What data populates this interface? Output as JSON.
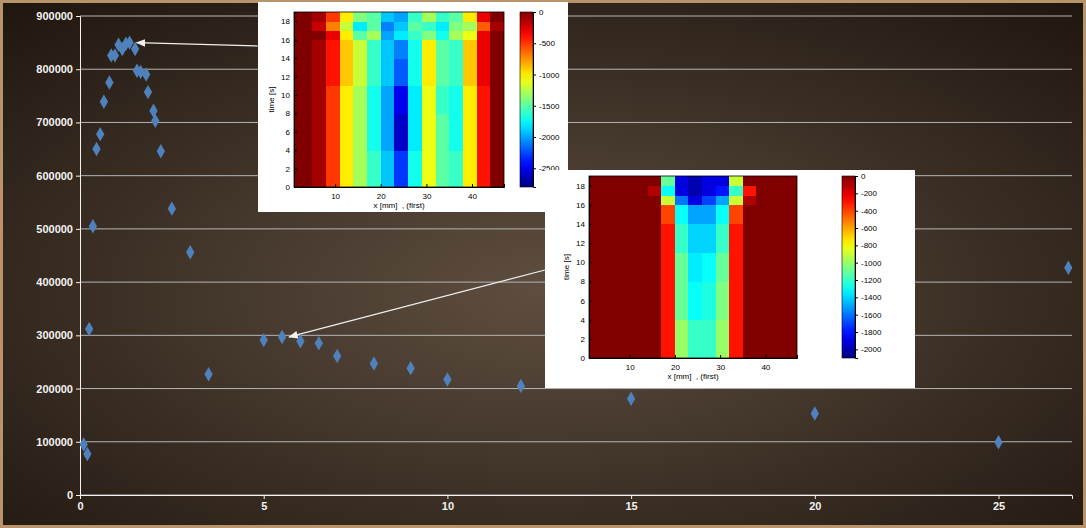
{
  "chart_data": [
    {
      "type": "scatter",
      "x": [
        0.1,
        0.2,
        0.25,
        0.35,
        0.45,
        0.55,
        0.65,
        0.8,
        0.85,
        0.95,
        1.05,
        1.15,
        1.25,
        1.35,
        1.5,
        1.55,
        1.65,
        1.8,
        1.85,
        2.0,
        2.05,
        2.2,
        2.5,
        3.0,
        3.5,
        5.0,
        5.5,
        6.0,
        6.5,
        7.0,
        8.0,
        9.0,
        10.0,
        12.0,
        15.0,
        20.0,
        25.0,
        26.9
      ],
      "values": [
        95000,
        77000,
        312000,
        505000,
        650000,
        678000,
        739000,
        775000,
        826000,
        826000,
        846000,
        838000,
        848000,
        850000,
        838000,
        797000,
        795000,
        790000,
        757000,
        722000,
        703000,
        646000,
        538000,
        456000,
        227000,
        291000,
        297000,
        289000,
        285000,
        261000,
        247000,
        238000,
        217000,
        205000,
        181000,
        153000,
        99000,
        427000
      ],
      "color": "#4f81bd",
      "marker": "diamond",
      "xlim": [
        0,
        27
      ],
      "ylim": [
        0,
        900000
      ],
      "xticks": [
        0,
        5,
        10,
        15,
        20,
        25
      ],
      "yticks": [
        0,
        100000,
        200000,
        300000,
        400000,
        500000,
        600000,
        700000,
        800000,
        900000
      ],
      "grid": true
    },
    {
      "type": "heatmap",
      "x_label": "x [mm]  , (first)",
      "y_label": "time [s]",
      "xlim": [
        1,
        47
      ],
      "ylim": [
        0,
        19
      ],
      "xticks": [
        10,
        20,
        30,
        40
      ],
      "yticks": [
        0,
        2,
        4,
        6,
        8,
        10,
        12,
        14,
        16,
        18
      ],
      "x_edges": [
        1,
        5,
        8,
        11,
        14,
        17,
        20,
        23,
        26,
        29,
        32,
        35,
        38,
        41,
        44,
        47
      ],
      "y_edges": [
        0,
        4,
        8,
        11,
        14,
        16,
        17,
        18,
        19
      ],
      "cells": [
        [
          0,
          -100,
          -500,
          -1000,
          -1300,
          -1600,
          -1900,
          -2300,
          -1700,
          -1100,
          -1500,
          -1600,
          -1000,
          -400,
          0
        ],
        [
          0,
          -100,
          -500,
          -1000,
          -1300,
          -1700,
          -2000,
          -2600,
          -1800,
          -1100,
          -1500,
          -1700,
          -1000,
          -400,
          0
        ],
        [
          0,
          -100,
          -500,
          -1000,
          -1300,
          -1700,
          -2000,
          -2500,
          -1800,
          -1100,
          -1600,
          -1700,
          -1000,
          -400,
          0
        ],
        [
          0,
          -100,
          -400,
          -900,
          -1200,
          -1600,
          -1900,
          -2200,
          -1700,
          -1000,
          -1500,
          -1600,
          -900,
          -300,
          0
        ],
        [
          0,
          -100,
          -400,
          -900,
          -1200,
          -1600,
          -1900,
          -2100,
          -1700,
          -1000,
          -1500,
          -1600,
          -900,
          -300,
          0
        ],
        [
          0,
          0,
          -300,
          -1000,
          -1500,
          -1300,
          -2000,
          -1800,
          -1600,
          -1400,
          -1700,
          -1300,
          -1100,
          -300,
          0
        ],
        [
          0,
          -200,
          -700,
          -1200,
          -1800,
          -1500,
          -2100,
          -1900,
          -1500,
          -1600,
          -1800,
          -1400,
          -1300,
          -600,
          -100
        ],
        [
          0,
          -100,
          -500,
          -1000,
          -1400,
          -1500,
          -1900,
          -2000,
          -1600,
          -1300,
          -1600,
          -1500,
          -1000,
          -300,
          0
        ]
      ],
      "colorbar_lim": [
        -2800,
        0
      ],
      "colorbar_ticks": [
        0,
        -500,
        -1000,
        -1500,
        -2000,
        -2500
      ]
    },
    {
      "type": "heatmap",
      "x_label": "x [mm]  , (first)",
      "y_label": "time [s]",
      "xlim": [
        1,
        47
      ],
      "ylim": [
        0,
        19
      ],
      "xticks": [
        10,
        20,
        30,
        40
      ],
      "yticks": [
        0,
        2,
        4,
        6,
        8,
        10,
        12,
        14,
        16,
        18
      ],
      "x_edges": [
        1,
        5,
        8,
        11,
        14,
        17,
        20,
        23,
        26,
        29,
        32,
        35,
        38,
        41,
        44,
        47
      ],
      "y_edges": [
        0,
        4,
        8,
        11,
        14,
        16,
        17,
        18,
        19
      ],
      "cells": [
        [
          0,
          0,
          0,
          0,
          0,
          -300,
          -1000,
          -1200,
          -1200,
          -1000,
          -300,
          0,
          0,
          0,
          0
        ],
        [
          0,
          0,
          0,
          0,
          0,
          -300,
          -1100,
          -1300,
          -1250,
          -1050,
          -300,
          0,
          0,
          0,
          0
        ],
        [
          0,
          0,
          0,
          0,
          0,
          -300,
          -1100,
          -1350,
          -1300,
          -1100,
          -300,
          0,
          0,
          0,
          0
        ],
        [
          0,
          0,
          0,
          0,
          0,
          -300,
          -1200,
          -1400,
          -1400,
          -1200,
          -300,
          0,
          0,
          0,
          0
        ],
        [
          0,
          0,
          0,
          0,
          0,
          -400,
          -1300,
          -1500,
          -1500,
          -1300,
          -400,
          0,
          0,
          0,
          0
        ],
        [
          0,
          0,
          0,
          0,
          0,
          -900,
          -1600,
          -1900,
          -1700,
          -1500,
          -900,
          -100,
          0,
          0,
          0
        ],
        [
          0,
          0,
          0,
          0,
          -100,
          -1300,
          -1900,
          -2000,
          -1900,
          -1800,
          -1200,
          -300,
          0,
          0,
          0
        ],
        [
          0,
          0,
          0,
          0,
          0,
          -1100,
          -1900,
          -2000,
          -1900,
          -1900,
          -900,
          0,
          0,
          0,
          0
        ]
      ],
      "colorbar_lim": [
        -2100,
        0
      ],
      "colorbar_ticks": [
        0,
        -200,
        -400,
        -600,
        -800,
        -1000,
        -1200,
        -1400,
        -1600,
        -1800,
        -2000
      ]
    }
  ]
}
